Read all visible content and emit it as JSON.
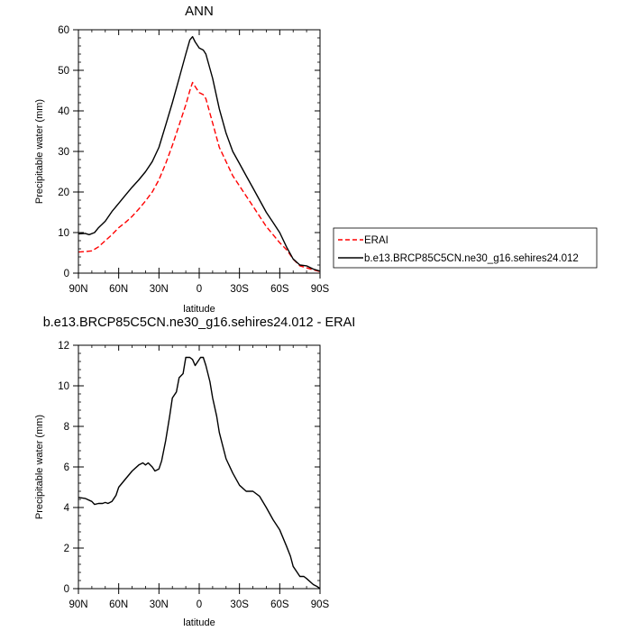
{
  "chart_data": [
    {
      "type": "line",
      "title": "ANN",
      "xlabel": "latitude",
      "ylabel": "Precipitable water (mm)",
      "xlim": [
        90,
        -90
      ],
      "ylim": [
        0,
        60
      ],
      "xticks": [
        90,
        60,
        30,
        0,
        -30,
        -60,
        -90
      ],
      "xtick_labels": [
        "90N",
        "60N",
        "30N",
        "0",
        "30S",
        "60S",
        "90S"
      ],
      "yticks": [
        0,
        10,
        20,
        30,
        40,
        50,
        60
      ],
      "ytick_labels": [
        "0",
        "10",
        "20",
        "30",
        "40",
        "50",
        "60"
      ],
      "grid": false,
      "legend_position": "outside-right",
      "series": [
        {
          "name": "ERAI",
          "color": "#ff0000",
          "dash": "dashed",
          "x": [
            90,
            85,
            80,
            75,
            70,
            65,
            60,
            55,
            50,
            45,
            40,
            35,
            30,
            25,
            20,
            15,
            10,
            7,
            5,
            3,
            0,
            -3,
            -5,
            -10,
            -15,
            -20,
            -25,
            -30,
            -35,
            -40,
            -45,
            -50,
            -55,
            -60,
            -65,
            -70,
            -75,
            -80,
            -85,
            -90
          ],
          "y": [
            5.2,
            5.3,
            5.5,
            6.5,
            8.0,
            9.5,
            11.2,
            12.5,
            14.0,
            15.8,
            17.8,
            20.0,
            23.0,
            27.0,
            31.5,
            36.5,
            41.5,
            45.0,
            47.0,
            46.0,
            44.5,
            44.0,
            43.0,
            37.0,
            31.0,
            27.5,
            24.0,
            21.5,
            19.0,
            16.5,
            14.0,
            11.5,
            9.5,
            7.5,
            5.8,
            3.5,
            1.8,
            1.3,
            0.8,
            0.4
          ]
        },
        {
          "name": "b.e13.BRCP85C5CN.ne30_g16.sehires24.012",
          "color": "#000000",
          "dash": "solid",
          "x": [
            90,
            85,
            82,
            78,
            75,
            70,
            65,
            60,
            55,
            50,
            45,
            40,
            35,
            30,
            25,
            20,
            15,
            10,
            7,
            5,
            3,
            0,
            -3,
            -5,
            -10,
            -15,
            -20,
            -25,
            -30,
            -35,
            -40,
            -45,
            -50,
            -55,
            -60,
            -65,
            -70,
            -75,
            -80,
            -85,
            -90
          ],
          "y": [
            9.7,
            9.8,
            9.5,
            10.0,
            11.2,
            12.8,
            15.2,
            17.2,
            19.2,
            21.2,
            23.0,
            25.0,
            27.5,
            31.0,
            36.5,
            42.0,
            48.0,
            54.0,
            57.5,
            58.3,
            57.0,
            55.5,
            55.0,
            54.0,
            48.0,
            40.5,
            34.5,
            30.0,
            27.0,
            24.0,
            21.0,
            18.0,
            15.0,
            12.5,
            10.0,
            6.5,
            3.5,
            2.0,
            1.8,
            1.0,
            0.5
          ]
        }
      ]
    },
    {
      "type": "line",
      "title": "b.e13.BRCP85C5CN.ne30_g16.sehires24.012 - ERAI",
      "xlabel": "latitude",
      "ylabel": "Precipitable water (mm)",
      "xlim": [
        90,
        -90
      ],
      "ylim": [
        0,
        12
      ],
      "xticks": [
        90,
        60,
        30,
        0,
        -30,
        -60,
        -90
      ],
      "xtick_labels": [
        "90N",
        "60N",
        "30N",
        "0",
        "30S",
        "60S",
        "90S"
      ],
      "yticks": [
        0,
        2,
        4,
        6,
        8,
        10,
        12
      ],
      "ytick_labels": [
        "0",
        "2",
        "4",
        "6",
        "8",
        "10",
        "12"
      ],
      "grid": false,
      "series": [
        {
          "color": "#000000",
          "dash": "solid",
          "x": [
            90,
            85,
            80,
            78,
            75,
            72,
            70,
            68,
            65,
            62,
            60,
            55,
            50,
            45,
            42,
            40,
            38,
            35,
            33,
            30,
            28,
            25,
            22,
            20,
            17,
            15,
            12,
            10,
            7,
            5,
            3,
            1,
            -1,
            -3,
            -5,
            -8,
            -10,
            -13,
            -15,
            -20,
            -25,
            -30,
            -35,
            -40,
            -45,
            -50,
            -55,
            -60,
            -65,
            -68,
            -70,
            -73,
            -75,
            -78,
            -80,
            -85,
            -88,
            -90
          ],
          "y": [
            4.5,
            4.45,
            4.3,
            4.15,
            4.2,
            4.2,
            4.25,
            4.2,
            4.3,
            4.6,
            5.0,
            5.4,
            5.8,
            6.1,
            6.2,
            6.1,
            6.2,
            6.0,
            5.8,
            5.9,
            6.3,
            7.3,
            8.5,
            9.4,
            9.7,
            10.4,
            10.6,
            11.4,
            11.4,
            11.3,
            11.0,
            11.2,
            11.4,
            11.4,
            11.0,
            10.2,
            9.4,
            8.5,
            7.7,
            6.4,
            5.7,
            5.1,
            4.8,
            4.8,
            4.55,
            4.0,
            3.4,
            2.9,
            2.1,
            1.6,
            1.1,
            0.8,
            0.6,
            0.6,
            0.5,
            0.2,
            0.1,
            0.0
          ]
        }
      ]
    }
  ]
}
